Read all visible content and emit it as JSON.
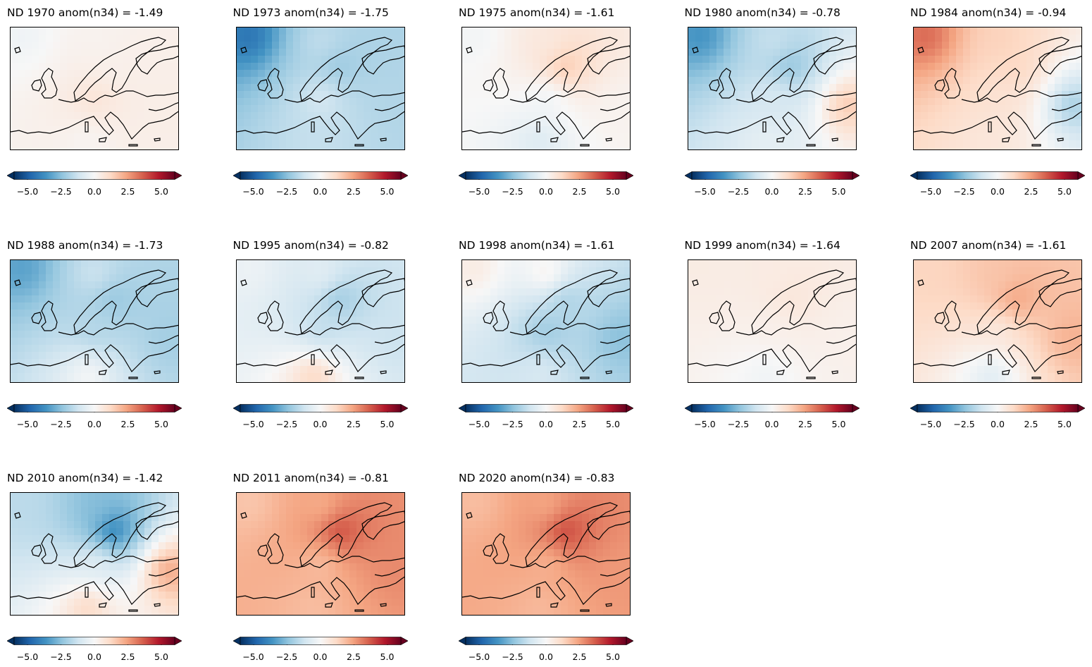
{
  "chart_data": {
    "type": "heatmap",
    "colormap": "RdBu_r",
    "colorbar": {
      "range": [
        -6,
        6
      ],
      "extend": "both",
      "ticks": [
        -5.0,
        -2.5,
        0.0,
        2.5,
        5.0
      ],
      "tick_labels": [
        "−5.0",
        "−2.5",
        "0.0",
        "2.5",
        "5.0"
      ]
    },
    "panels": [
      {
        "title": "ND 1970   anom(n34) = -1.49",
        "pattern": {
          "north": 0.2,
          "scandinavia": 0.3,
          "central": 0.9,
          "south": 0.1,
          "east": 0.4,
          "northwest": -0.3
        }
      },
      {
        "title": "ND 1973   anom(n34) = -1.75",
        "pattern": {
          "north": -1.4,
          "scandinavia": -2.3,
          "central": -0.9,
          "south": -1.4,
          "east": -1.8,
          "northwest": -4.6
        }
      },
      {
        "title": "ND 1975   anom(n34) = -1.61",
        "pattern": {
          "north": 0.6,
          "scandinavia": 1.9,
          "central": -0.4,
          "south": -0.9,
          "east": 0.2,
          "northwest": -0.2
        }
      },
      {
        "title": "ND 1980   anom(n34) = -0.78",
        "pattern": {
          "north": -1.3,
          "scandinavia": -2.6,
          "central": -0.9,
          "south": -0.5,
          "east": 1.8,
          "northwest": -3.8
        }
      },
      {
        "title": "ND 1984   anom(n34) = -0.94",
        "pattern": {
          "north": 1.4,
          "scandinavia": 1.3,
          "central": 0.9,
          "south": 0.7,
          "east": -2.2,
          "northwest": 3.6
        }
      },
      {
        "title": "ND 1988   anom(n34) = -1.73",
        "pattern": {
          "north": -1.1,
          "scandinavia": -2.4,
          "central": -1.8,
          "south": 0.1,
          "east": -2.1,
          "northwest": -3.4
        }
      },
      {
        "title": "ND 1995   anom(n34) = -0.82",
        "pattern": {
          "north": -0.5,
          "scandinavia": -2.4,
          "central": -1.6,
          "south": 1.5,
          "east": -1.3,
          "northwest": -0.3
        }
      },
      {
        "title": "ND 1998   anom(n34) = -1.61",
        "pattern": {
          "north": 0.6,
          "scandinavia": -2.1,
          "central": -2.3,
          "south": -0.9,
          "east": -2.6,
          "northwest": 0.6
        }
      },
      {
        "title": "ND 1999   anom(n34) = -1.64",
        "pattern": {
          "north": 0.5,
          "scandinavia": 0.8,
          "central": 0.3,
          "south": -0.3,
          "east": 0.3,
          "northwest": 0.5
        }
      },
      {
        "title": "ND 2007   anom(n34) = -1.61",
        "pattern": {
          "north": 1.7,
          "scandinavia": 2.6,
          "central": 0.5,
          "south": -0.9,
          "east": 2.2,
          "northwest": 1.3
        }
      },
      {
        "title": "ND 2010   anom(n34) = -1.42",
        "pattern": {
          "north": -2.6,
          "scandinavia": -4.6,
          "central": -0.6,
          "south": 1.4,
          "east": 2.6,
          "northwest": -1.6
        }
      },
      {
        "title": "ND 2011   anom(n34) = -0.81",
        "pattern": {
          "north": 2.1,
          "scandinavia": 4.3,
          "central": 1.7,
          "south": 1.8,
          "east": 2.9,
          "northwest": 1.6
        }
      },
      {
        "title": "ND 2020   anom(n34) = -0.83",
        "pattern": {
          "north": 2.2,
          "scandinavia": 4.4,
          "central": 2.0,
          "south": 1.9,
          "east": 2.6,
          "northwest": 1.8
        }
      }
    ]
  }
}
